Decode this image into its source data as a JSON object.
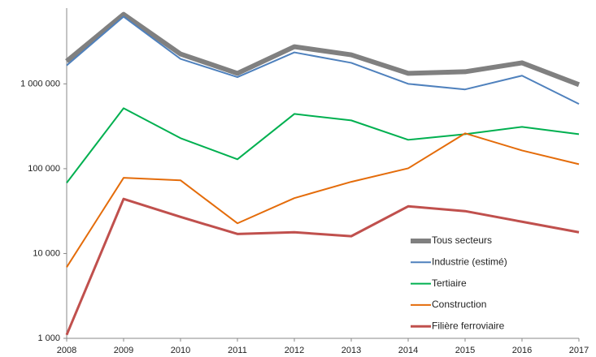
{
  "chart_data": {
    "type": "line",
    "log_scale": true,
    "grid": false,
    "legend": "lower right",
    "categories": [
      "2008",
      "2009",
      "2010",
      "2011",
      "2012",
      "2013",
      "2014",
      "2015",
      "2016",
      "2017"
    ],
    "ylim": [
      1000,
      7000000
    ],
    "yticks": [
      {
        "value": 1000,
        "label": "1 000"
      },
      {
        "value": 10000,
        "label": "10 000"
      },
      {
        "value": 100000,
        "label": "100 000"
      },
      {
        "value": 1000000,
        "label": "1 000 000"
      }
    ],
    "series": [
      {
        "name": "Tous secteurs",
        "color": "#808080",
        "values": [
          1850000,
          6600000,
          2250000,
          1330000,
          2740000,
          2200000,
          1330000,
          1390000,
          1770000,
          980000
        ]
      },
      {
        "name": "Industrie (estimé)",
        "color": "#4f81bd",
        "values": [
          1650000,
          6200000,
          1970000,
          1200000,
          2350000,
          1770000,
          1000000,
          860000,
          1250000,
          580000
        ]
      },
      {
        "name": "Tertiaire",
        "color": "#00b050",
        "values": [
          68000,
          516000,
          229000,
          129000,
          442000,
          371000,
          219000,
          255000,
          311000,
          255000
        ]
      },
      {
        "name": "Construction",
        "color": "#e46c0a",
        "values": [
          6900,
          78000,
          73000,
          22700,
          45000,
          70000,
          101000,
          261000,
          164000,
          113000
        ]
      },
      {
        "name": "Filière ferroviaire",
        "color": "#c0504d",
        "values": [
          1100,
          44000,
          27000,
          17000,
          17800,
          16000,
          36000,
          31600,
          23700,
          17800
        ]
      }
    ]
  }
}
